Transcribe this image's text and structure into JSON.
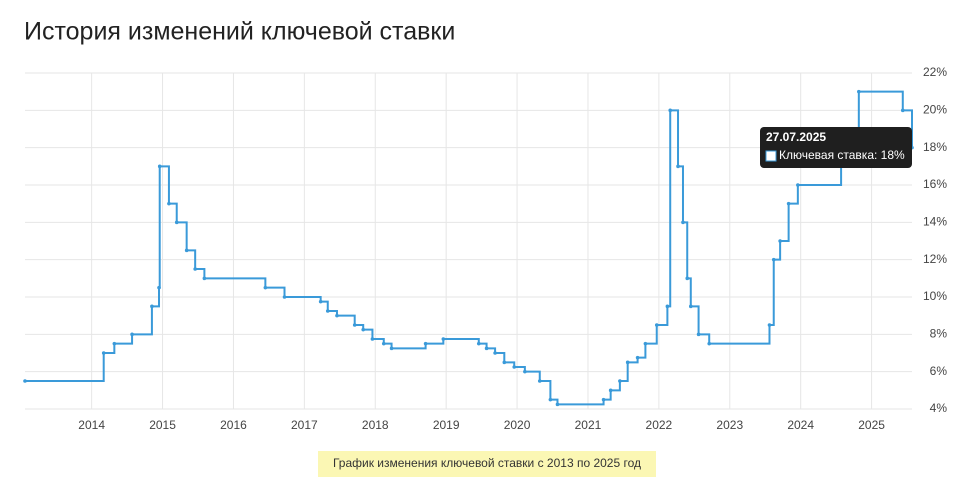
{
  "chart_data": {
    "type": "step-line",
    "title": "История изменений ключевой ставки",
    "caption": "График изменения ключевой ставки с 2013 по 2025 год",
    "series": [
      {
        "name": "Ключевая ставка",
        "color": "#3a9ad9",
        "x": [
          2013.06,
          2014.17,
          2014.32,
          2014.57,
          2014.85,
          2014.95,
          2014.96,
          2015.09,
          2015.2,
          2015.34,
          2015.46,
          2015.59,
          2016.45,
          2016.72,
          2017.23,
          2017.33,
          2017.46,
          2017.71,
          2017.83,
          2017.96,
          2018.12,
          2018.23,
          2018.71,
          2018.96,
          2019.46,
          2019.57,
          2019.69,
          2019.82,
          2019.96,
          2020.11,
          2020.32,
          2020.47,
          2020.57,
          2021.22,
          2021.32,
          2021.45,
          2021.56,
          2021.7,
          2021.81,
          2021.97,
          2022.12,
          2022.16,
          2022.27,
          2022.34,
          2022.4,
          2022.45,
          2022.56,
          2022.71,
          2023.56,
          2023.62,
          2023.71,
          2023.83,
          2023.96,
          2024.57,
          2024.82,
          2025.44,
          2025.57
        ],
        "values": [
          5.5,
          7,
          7.5,
          8,
          9.5,
          10.5,
          17,
          15,
          14,
          12.5,
          11.5,
          11,
          10.5,
          10,
          9.75,
          9.25,
          9,
          8.5,
          8.25,
          7.75,
          7.5,
          7.25,
          7.5,
          7.75,
          7.5,
          7.25,
          7,
          6.5,
          6.25,
          6,
          5.5,
          4.5,
          4.25,
          4.5,
          5,
          5.5,
          6.5,
          6.75,
          7.5,
          8.5,
          9.5,
          20,
          17,
          14,
          11,
          9.5,
          8,
          7.5,
          8.5,
          12,
          13,
          15,
          16,
          18,
          21,
          20,
          18
        ]
      }
    ],
    "xlim": [
      2013.06,
      2025.57
    ],
    "xticks": [
      2014,
      2015,
      2016,
      2017,
      2018,
      2019,
      2020,
      2021,
      2022,
      2023,
      2024,
      2025
    ],
    "ylim": [
      4,
      22
    ],
    "yticks": [
      {
        "value": 4,
        "label": "4%"
      },
      {
        "value": 6,
        "label": "6%"
      },
      {
        "value": 8,
        "label": "8%"
      },
      {
        "value": 10,
        "label": "10%"
      },
      {
        "value": 12,
        "label": "12%"
      },
      {
        "value": 14,
        "label": "14%"
      },
      {
        "value": 16,
        "label": "16%"
      },
      {
        "value": 18,
        "label": "18%"
      },
      {
        "value": 20,
        "label": "20%"
      },
      {
        "value": 22,
        "label": "22%"
      }
    ],
    "grid": true,
    "tooltip": {
      "date": "27.07.2025",
      "label": "Ключевая ставка: 18%"
    }
  }
}
